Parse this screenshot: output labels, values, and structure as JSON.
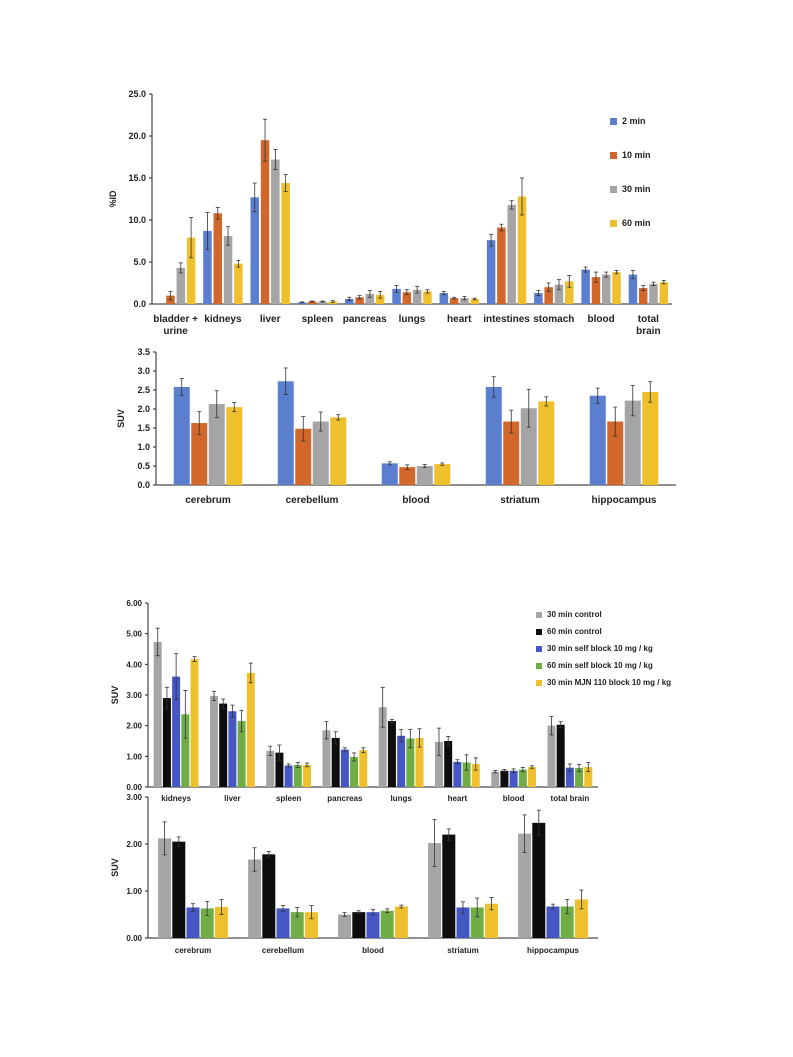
{
  "chart_data": [
    {
      "id": "c1",
      "type": "bar",
      "ylabel": "%ID",
      "ylim": [
        0,
        25
      ],
      "yticks": [
        "0.0",
        "5.0",
        "10.0",
        "15.0",
        "20.0",
        "25.0"
      ],
      "categories": [
        "bladder +\nurine",
        "kidneys",
        "liver",
        "spleen",
        "pancreas",
        "lungs",
        "heart",
        "intestines",
        "stomach",
        "blood",
        "total\nbrain"
      ],
      "series": [
        {
          "name": "2 min",
          "color": "#5B7FCE",
          "values": [
            0.0,
            8.7,
            12.7,
            0.2,
            0.6,
            1.8,
            1.3,
            7.6,
            1.3,
            4.1,
            3.5
          ],
          "errors": [
            0,
            2.2,
            1.7,
            0.05,
            0.2,
            0.4,
            0.2,
            0.7,
            0.3,
            0.3,
            0.5
          ]
        },
        {
          "name": "10 min",
          "color": "#D2672B",
          "values": [
            1.0,
            10.8,
            19.5,
            0.3,
            0.8,
            1.4,
            0.7,
            9.1,
            2.0,
            3.2,
            1.9
          ],
          "errors": [
            0.5,
            0.7,
            2.5,
            0.05,
            0.2,
            0.3,
            0.1,
            0.4,
            0.5,
            0.6,
            0.3
          ]
        },
        {
          "name": "30 min",
          "color": "#A5A5A5",
          "values": [
            4.3,
            8.1,
            17.2,
            0.3,
            1.2,
            1.7,
            0.7,
            11.8,
            2.3,
            3.5,
            2.4
          ],
          "errors": [
            0.6,
            1.1,
            1.2,
            0.05,
            0.4,
            0.4,
            0.2,
            0.5,
            0.6,
            0.3,
            0.2
          ]
        },
        {
          "name": "60 min",
          "color": "#EEC02D",
          "values": [
            7.9,
            4.8,
            14.4,
            0.3,
            1.1,
            1.5,
            0.6,
            12.8,
            2.7,
            3.8,
            2.6
          ],
          "errors": [
            2.4,
            0.4,
            1.0,
            0.1,
            0.4,
            0.2,
            0.1,
            2.2,
            0.7,
            0.2,
            0.2
          ]
        }
      ],
      "legend_position": "right"
    },
    {
      "id": "c2",
      "type": "bar",
      "ylabel": "SUV",
      "ylim": [
        0,
        3.5
      ],
      "yticks": [
        "0.0",
        "0.5",
        "1.0",
        "1.5",
        "2.0",
        "2.5",
        "3.0",
        "3.5"
      ],
      "categories": [
        "cerebrum",
        "cerebellum",
        "blood",
        "striatum",
        "hippocampus"
      ],
      "series": [
        {
          "name": "2 min",
          "color": "#5B7FCE",
          "values": [
            2.58,
            2.73,
            0.57,
            2.58,
            2.35
          ],
          "errors": [
            0.22,
            0.35,
            0.04,
            0.27,
            0.2
          ]
        },
        {
          "name": "10 min",
          "color": "#D2672B",
          "values": [
            1.63,
            1.48,
            0.47,
            1.67,
            1.67
          ],
          "errors": [
            0.3,
            0.32,
            0.06,
            0.3,
            0.38
          ]
        },
        {
          "name": "30 min",
          "color": "#A5A5A5",
          "values": [
            2.13,
            1.67,
            0.5,
            2.02,
            2.22
          ],
          "errors": [
            0.35,
            0.25,
            0.04,
            0.5,
            0.4
          ]
        },
        {
          "name": "60 min",
          "color": "#EEC02D",
          "values": [
            2.05,
            1.78,
            0.55,
            2.2,
            2.45
          ],
          "errors": [
            0.12,
            0.07,
            0.03,
            0.12,
            0.27
          ]
        }
      ]
    },
    {
      "id": "c3",
      "type": "bar",
      "ylabel": "SUV",
      "ylim": [
        0,
        6
      ],
      "yticks": [
        "0.00",
        "1.00",
        "2.00",
        "3.00",
        "4.00",
        "5.00",
        "6.00"
      ],
      "categories": [
        "kidneys",
        "liver",
        "spleen",
        "pancreas",
        "lungs",
        "heart",
        "blood",
        "total brain"
      ],
      "series": [
        {
          "name": "30 min control",
          "color": "#A5A5A5",
          "values": [
            4.73,
            2.97,
            1.18,
            1.85,
            2.6,
            1.47,
            0.5,
            2.0
          ],
          "errors": [
            0.45,
            0.15,
            0.15,
            0.28,
            0.65,
            0.45,
            0.04,
            0.3
          ]
        },
        {
          "name": "60 min control",
          "color": "#0D0D0D",
          "values": [
            2.9,
            2.72,
            1.12,
            1.6,
            2.15,
            1.5,
            0.53,
            2.03
          ],
          "errors": [
            0.35,
            0.15,
            0.25,
            0.2,
            0.05,
            0.15,
            0.04,
            0.1
          ]
        },
        {
          "name": "30 min self block 10 mg / kg",
          "color": "#4457C4",
          "values": [
            3.6,
            2.47,
            0.7,
            1.22,
            1.67,
            0.82,
            0.53,
            0.63
          ],
          "errors": [
            0.75,
            0.2,
            0.05,
            0.06,
            0.2,
            0.07,
            0.06,
            0.12
          ]
        },
        {
          "name": "60 min self block 10 mg / kg",
          "color": "#70AD47",
          "values": [
            2.37,
            2.15,
            0.72,
            0.98,
            1.58,
            0.8,
            0.57,
            0.62
          ],
          "errors": [
            0.78,
            0.35,
            0.08,
            0.13,
            0.3,
            0.25,
            0.07,
            0.12
          ]
        },
        {
          "name": "30 min MJN 110 block 10 mg / kg",
          "color": "#EEC02D",
          "values": [
            4.17,
            3.72,
            0.72,
            1.2,
            1.6,
            0.75,
            0.65,
            0.65
          ],
          "errors": [
            0.08,
            0.32,
            0.06,
            0.08,
            0.3,
            0.2,
            0.04,
            0.15
          ]
        }
      ],
      "legend_position": "top-right"
    },
    {
      "id": "c4",
      "type": "bar",
      "ylabel": "SUV",
      "ylim": [
        0,
        3
      ],
      "yticks": [
        "0.00",
        "1.00",
        "2.00",
        "3.00"
      ],
      "categories": [
        "cerebrum",
        "cerebellum",
        "blood",
        "striatum",
        "hippocampus"
      ],
      "series": [
        {
          "name": "30 min control",
          "color": "#A5A5A5",
          "values": [
            2.12,
            1.67,
            0.5,
            2.02,
            2.22
          ],
          "errors": [
            0.35,
            0.25,
            0.04,
            0.5,
            0.4
          ]
        },
        {
          "name": "60 min control",
          "color": "#0D0D0D",
          "values": [
            2.05,
            1.78,
            0.55,
            2.2,
            2.45
          ],
          "errors": [
            0.1,
            0.06,
            0.03,
            0.12,
            0.27
          ]
        },
        {
          "name": "30 min self block 10 mg / kg",
          "color": "#4457C4",
          "values": [
            0.65,
            0.63,
            0.55,
            0.65,
            0.67
          ],
          "errors": [
            0.08,
            0.06,
            0.06,
            0.12,
            0.05
          ]
        },
        {
          "name": "60 min self block 10 mg / kg",
          "color": "#70AD47",
          "values": [
            0.63,
            0.55,
            0.58,
            0.65,
            0.67
          ],
          "errors": [
            0.15,
            0.1,
            0.04,
            0.2,
            0.15
          ]
        },
        {
          "name": "30 min MJN 110 block 10 mg / kg",
          "color": "#EEC02D",
          "values": [
            0.66,
            0.55,
            0.67,
            0.73,
            0.82
          ],
          "errors": [
            0.16,
            0.14,
            0.03,
            0.13,
            0.2
          ]
        }
      ]
    }
  ]
}
